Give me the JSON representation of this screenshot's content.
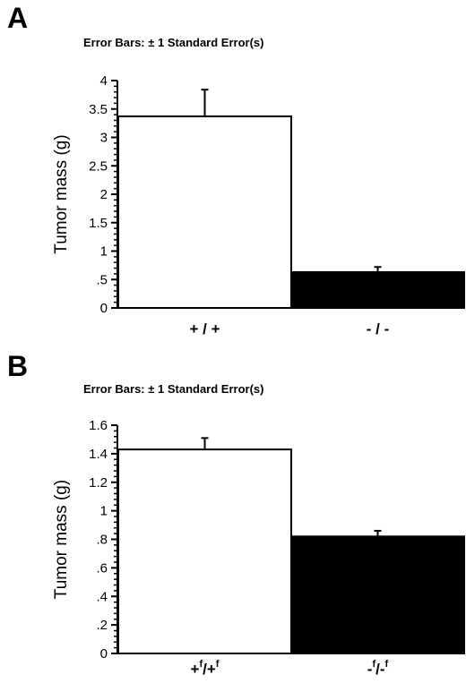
{
  "chart_data": [
    {
      "type": "bar",
      "panel": "A",
      "title": "Error Bars: ± 1 Standard Error(s)",
      "ylabel": "Tumor mass (g)",
      "ylim": [
        0,
        4
      ],
      "yticks": [
        "0",
        ".5",
        "1",
        "1.5",
        "2",
        "2.5",
        "3",
        "3.5",
        "4"
      ],
      "categories": [
        "+/+",
        "-/-"
      ],
      "values": [
        3.37,
        0.63
      ],
      "errors": [
        0.47,
        0.09
      ],
      "fills": [
        "#ffffff",
        "#000000"
      ],
      "grid": false
    },
    {
      "type": "bar",
      "panel": "B",
      "title": "Error Bars: ± 1 Standard Error(s)",
      "ylabel": "Tumor mass (g)",
      "ylim": [
        0,
        1.6
      ],
      "yticks": [
        "0",
        ".2",
        ".4",
        ".6",
        ".8",
        "1",
        "1.2",
        "1.4",
        "1.6"
      ],
      "categories": [
        "+f/+f",
        "-f/-f"
      ],
      "values": [
        1.43,
        0.82
      ],
      "errors": [
        0.08,
        0.04
      ],
      "fills": [
        "#ffffff",
        "#000000"
      ],
      "grid": false
    }
  ],
  "colors": {
    "axis": "#000000",
    "bar_outline": "#000000"
  }
}
